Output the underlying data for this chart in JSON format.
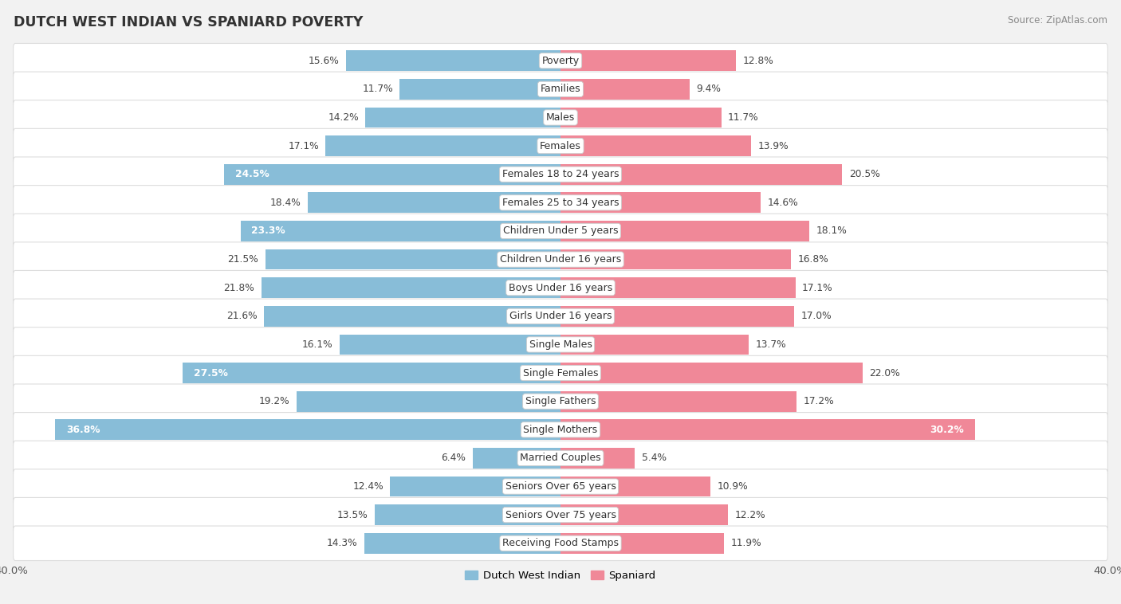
{
  "title": "DUTCH WEST INDIAN VS SPANIARD POVERTY",
  "source": "Source: ZipAtlas.com",
  "categories": [
    "Poverty",
    "Families",
    "Males",
    "Females",
    "Females 18 to 24 years",
    "Females 25 to 34 years",
    "Children Under 5 years",
    "Children Under 16 years",
    "Boys Under 16 years",
    "Girls Under 16 years",
    "Single Males",
    "Single Females",
    "Single Fathers",
    "Single Mothers",
    "Married Couples",
    "Seniors Over 65 years",
    "Seniors Over 75 years",
    "Receiving Food Stamps"
  ],
  "dutch_values": [
    15.6,
    11.7,
    14.2,
    17.1,
    24.5,
    18.4,
    23.3,
    21.5,
    21.8,
    21.6,
    16.1,
    27.5,
    19.2,
    36.8,
    6.4,
    12.4,
    13.5,
    14.3
  ],
  "spaniard_values": [
    12.8,
    9.4,
    11.7,
    13.9,
    20.5,
    14.6,
    18.1,
    16.8,
    17.1,
    17.0,
    13.7,
    22.0,
    17.2,
    30.2,
    5.4,
    10.9,
    12.2,
    11.9
  ],
  "dutch_color": "#88bdd8",
  "spaniard_color": "#f08898",
  "highlight_threshold": 23.0,
  "xlim": 40.0,
  "bar_height": 0.72,
  "background_color": "#f2f2f2",
  "row_bg": "#ffffff",
  "label_fontsize": 9.0,
  "value_fontsize": 8.8,
  "title_fontsize": 12.5,
  "source_fontsize": 8.5
}
